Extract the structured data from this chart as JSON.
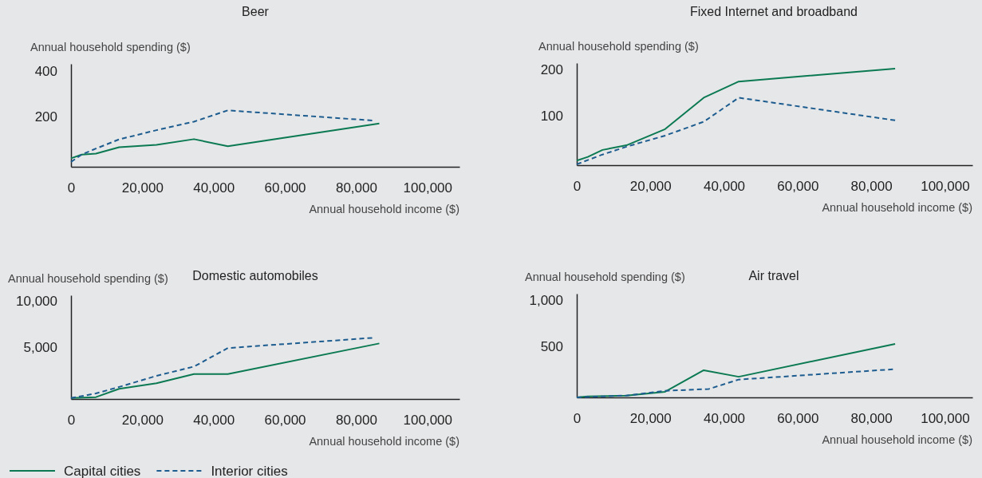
{
  "chart_data": [
    {
      "type": "line",
      "title": "Beer",
      "xlabel": "Annual household income ($)",
      "ylabel": "Annual household spending ($)",
      "xlim": [
        0,
        109000
      ],
      "ylim": [
        -17,
        430
      ],
      "xticks": [
        {
          "value": 0,
          "label": "0"
        },
        {
          "value": 20000,
          "label": "20,000"
        },
        {
          "value": 40000,
          "label": "40,000"
        },
        {
          "value": 60000,
          "label": "60,000"
        },
        {
          "value": 80000,
          "label": "80,000"
        },
        {
          "value": 100000,
          "label": "100,000"
        }
      ],
      "yticks": [
        200,
        400
      ],
      "grid": false,
      "legend": false,
      "series": [
        {
          "color": "#0b7a52",
          "line_style": "solid",
          "x": [
            0,
            3000,
            7000,
            13500,
            24000,
            34500,
            44000,
            86500
          ],
          "values": [
            20,
            36,
            40,
            68,
            78,
            103,
            72,
            171
          ]
        },
        {
          "color": "#1d5c8f",
          "line_style": "dashed",
          "x": [
            0,
            3000,
            7000,
            13500,
            24000,
            34500,
            44000,
            84500
          ],
          "values": [
            4,
            36,
            62,
            102,
            142,
            179,
            228,
            184
          ]
        }
      ]
    },
    {
      "type": "line",
      "title": "Fixed Internet and broadband",
      "xlabel": "Annual household income ($)",
      "ylabel": "Annual household spending ($)",
      "xlim": [
        0,
        107500
      ],
      "ylim": [
        -7,
        214
      ],
      "xticks": [
        {
          "value": 0,
          "label": "0"
        },
        {
          "value": 20000,
          "label": "20,000"
        },
        {
          "value": 40000,
          "label": "40,000"
        },
        {
          "value": 60000,
          "label": "60,000"
        },
        {
          "value": 80000,
          "label": "80,000"
        },
        {
          "value": 100000,
          "label": "100,000"
        }
      ],
      "yticks": [
        100,
        200
      ],
      "grid": false,
      "legend": false,
      "series": [
        {
          "color": "#0b7a52",
          "line_style": "solid",
          "x": [
            0,
            3000,
            7000,
            13500,
            24000,
            34500,
            44000,
            86500
          ],
          "values": [
            3,
            11,
            26,
            36,
            71,
            139,
            174,
            202
          ]
        },
        {
          "color": "#1d5c8f",
          "line_style": "dashed",
          "x": [
            0,
            7000,
            13500,
            24000,
            34500,
            44000,
            86500
          ],
          "values": [
            -5,
            16,
            33,
            57,
            87,
            139,
            90
          ]
        }
      ]
    },
    {
      "type": "line",
      "title": "Domestic automobiles",
      "xlabel": "Annual household income ($)",
      "ylabel": "Annual household spending ($)",
      "xlim": [
        0,
        109000
      ],
      "ylim": [
        -600,
        10600
      ],
      "xticks": [
        {
          "value": 0,
          "label": "0"
        },
        {
          "value": 20000,
          "label": "20,000"
        },
        {
          "value": 40000,
          "label": "40,000"
        },
        {
          "value": 60000,
          "label": "60,000"
        },
        {
          "value": 80000,
          "label": "80,000"
        },
        {
          "value": 100000,
          "label": "100,000"
        }
      ],
      "yticks": [
        {
          "value": 5000,
          "label": "5,000"
        },
        {
          "value": 10000,
          "label": "10,000"
        }
      ],
      "grid": false,
      "legend": "bottom left",
      "series": [
        {
          "name": "Capital cities",
          "color": "#0b7a52",
          "line_style": "solid",
          "x": [
            0,
            7000,
            13500,
            24000,
            34500,
            44000,
            86500
          ],
          "values": [
            -500,
            -400,
            500,
            1100,
            2100,
            2100,
            5400
          ]
        },
        {
          "name": "Interior cities",
          "color": "#1d5c8f",
          "line_style": "dashed",
          "x": [
            0,
            7000,
            13500,
            24000,
            34500,
            44000,
            84500
          ],
          "values": [
            -500,
            0,
            700,
            1900,
            2900,
            4900,
            6000
          ]
        }
      ]
    },
    {
      "type": "line",
      "title": "Air travel",
      "xlabel": "Annual household income ($)",
      "ylabel": "Annual household spending ($)",
      "xlim": [
        0,
        107500
      ],
      "ylim": [
        -40,
        1066
      ],
      "xticks": [
        {
          "value": 0,
          "label": "0"
        },
        {
          "value": 20000,
          "label": "20,000"
        },
        {
          "value": 40000,
          "label": "40,000"
        },
        {
          "value": 60000,
          "label": "60,000"
        },
        {
          "value": 80000,
          "label": "80,000"
        },
        {
          "value": 100000,
          "label": "100,000"
        }
      ],
      "yticks": [
        500,
        {
          "value": 1000,
          "label": "1,000"
        }
      ],
      "grid": false,
      "legend": false,
      "series": [
        {
          "color": "#0b7a52",
          "line_style": "solid",
          "x": [
            0,
            3000,
            13500,
            24000,
            34500,
            44000,
            86500
          ],
          "values": [
            -40,
            -30,
            -20,
            20,
            250,
            180,
            530
          ]
        },
        {
          "color": "#1d5c8f",
          "line_style": "dashed",
          "x": [
            0,
            13500,
            24000,
            35900,
            44000,
            85900
          ],
          "values": [
            -40,
            -20,
            30,
            50,
            150,
            260
          ]
        }
      ]
    }
  ]
}
